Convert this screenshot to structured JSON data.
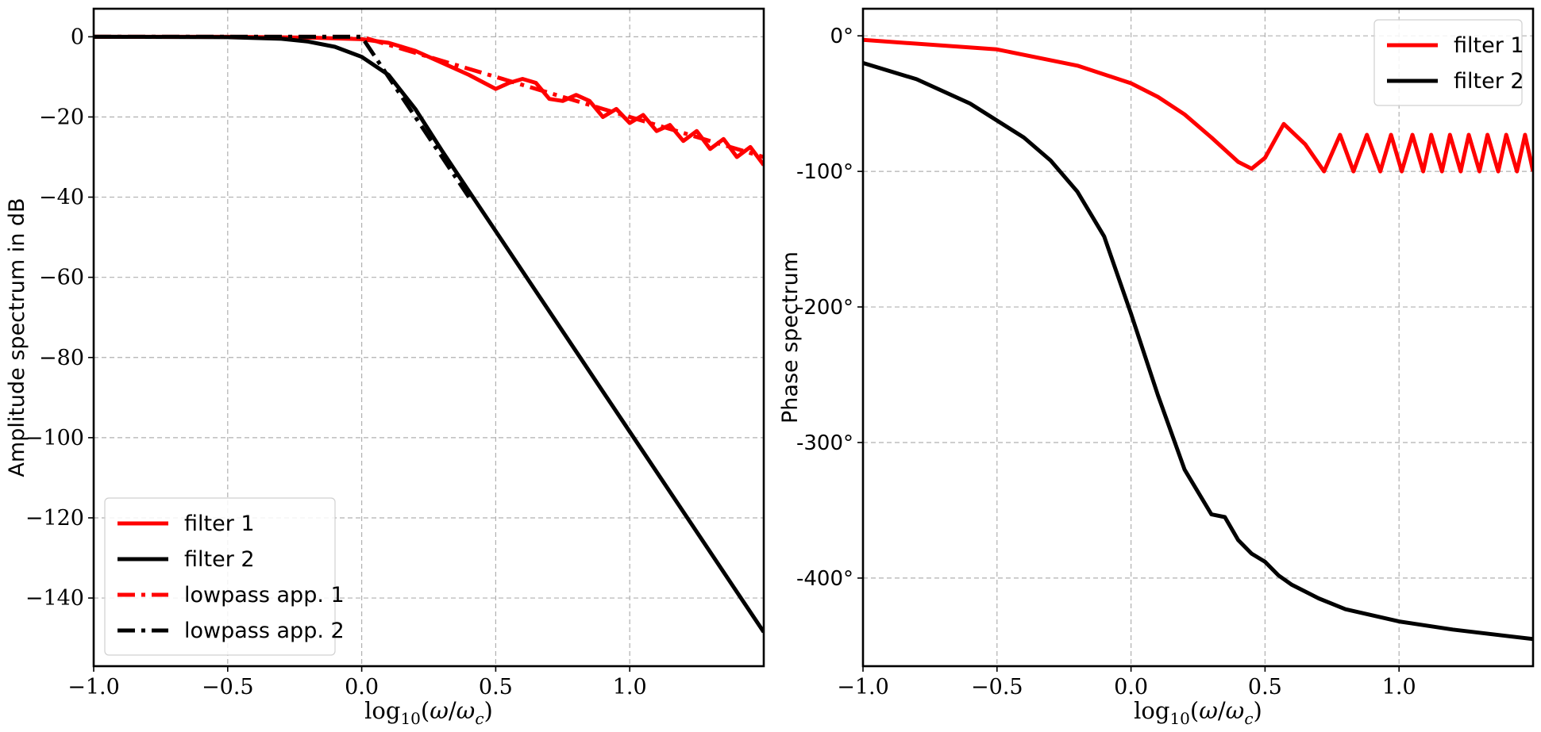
{
  "chart_data": [
    {
      "type": "line",
      "ylabel": "Amplitude spectrum in dB",
      "xlabel": "log10(ω/ωc)",
      "xlim": [
        -1.0,
        1.5
      ],
      "ylim": [
        -157,
        7
      ],
      "xticks": [
        -1.0,
        -0.5,
        0.0,
        0.5,
        1.0
      ],
      "xtick_labels": [
        "−1.0",
        "−0.5",
        "0.0",
        "0.5",
        "1.0"
      ],
      "yticks": [
        0,
        -20,
        -40,
        -60,
        -80,
        -100,
        -120,
        -140
      ],
      "ytick_labels": [
        "0",
        "−20",
        "−40",
        "−60",
        "−80",
        "−100",
        "−120",
        "−140"
      ],
      "grid": true,
      "legend_position": "lower-left",
      "series": [
        {
          "name": "filter 1",
          "color": "#ff0000",
          "style": "solid",
          "x": [
            -1.0,
            -0.5,
            -0.2,
            0.0,
            0.1,
            0.2,
            0.3,
            0.4,
            0.5,
            0.55,
            0.6,
            0.65,
            0.7,
            0.75,
            0.8,
            0.85,
            0.9,
            0.95,
            1.0,
            1.05,
            1.1,
            1.15,
            1.2,
            1.25,
            1.3,
            1.35,
            1.4,
            1.45,
            1.5
          ],
          "y": [
            0,
            0,
            -0.2,
            -0.6,
            -1.5,
            -3.5,
            -6.5,
            -9.5,
            -13,
            -11.5,
            -10.5,
            -11.5,
            -15.5,
            -16,
            -14.5,
            -16,
            -20,
            -18,
            -21.5,
            -19.5,
            -23.5,
            -22,
            -26,
            -23.5,
            -28,
            -25.5,
            -30,
            -27.5,
            -32
          ]
        },
        {
          "name": "filter 2",
          "color": "#000000",
          "style": "solid",
          "x": [
            -1.0,
            -0.5,
            -0.3,
            -0.2,
            -0.1,
            0.0,
            0.1,
            0.2,
            0.3,
            0.4,
            0.5,
            0.6,
            0.8,
            1.0,
            1.2,
            1.4,
            1.5
          ],
          "y": [
            0,
            -0.1,
            -0.5,
            -1.2,
            -2.5,
            -5,
            -9.5,
            -18,
            -28.5,
            -38.5,
            -48.5,
            -58.5,
            -78.5,
            -98.5,
            -118.5,
            -138.5,
            -148.5
          ]
        },
        {
          "name": "lowpass app. 1",
          "color": "#ff0000",
          "style": "dashdot",
          "x": [
            -1.0,
            0.0,
            1.5
          ],
          "y": [
            0,
            0,
            -30
          ]
        },
        {
          "name": "lowpass app. 2",
          "color": "#000000",
          "style": "dashdot",
          "x": [
            -1.0,
            0.0,
            0.4
          ],
          "y": [
            0,
            0,
            -40
          ]
        }
      ]
    },
    {
      "type": "line",
      "ylabel": "Phase spectrum",
      "xlabel": "log10(ω/ωc)",
      "xlim": [
        -1.0,
        1.5
      ],
      "ylim": [
        -465,
        20
      ],
      "xticks": [
        -1.0,
        -0.5,
        0.0,
        0.5,
        1.0
      ],
      "xtick_labels": [
        "−1.0",
        "−0.5",
        "0.0",
        "0.5",
        "1.0"
      ],
      "yticks": [
        0,
        -100,
        -200,
        -300,
        -400
      ],
      "ytick_labels": [
        "0°",
        "-100°",
        "-200°",
        "-300°",
        "-400°"
      ],
      "grid": true,
      "legend_position": "top-right",
      "series": [
        {
          "name": "filter 1",
          "color": "#ff0000",
          "style": "solid",
          "x": [
            -1.0,
            -0.5,
            -0.2,
            0.0,
            0.1,
            0.2,
            0.3,
            0.4,
            0.45,
            0.5,
            0.57,
            0.65,
            0.72,
            0.78,
            0.83,
            0.88,
            0.93,
            0.97,
            1.01,
            1.05,
            1.09,
            1.12,
            1.16,
            1.19,
            1.23,
            1.26,
            1.3,
            1.33,
            1.37,
            1.4,
            1.44,
            1.47,
            1.5
          ],
          "y": [
            -3,
            -10,
            -22,
            -35,
            -45,
            -58,
            -75,
            -93,
            -98,
            -90,
            -65,
            -80,
            -100,
            -73,
            -100,
            -73,
            -100,
            -73,
            -100,
            -73,
            -100,
            -73,
            -100,
            -73,
            -100,
            -73,
            -100,
            -73,
            -100,
            -73,
            -100,
            -73,
            -100
          ]
        },
        {
          "name": "filter 2",
          "color": "#000000",
          "style": "solid",
          "x": [
            -1.0,
            -0.8,
            -0.6,
            -0.4,
            -0.3,
            -0.2,
            -0.1,
            0.0,
            0.1,
            0.2,
            0.3,
            0.35,
            0.4,
            0.45,
            0.5,
            0.55,
            0.6,
            0.7,
            0.8,
            1.0,
            1.2,
            1.5
          ],
          "y": [
            -20,
            -32,
            -50,
            -75,
            -92,
            -115,
            -148,
            -205,
            -265,
            -320,
            -353,
            -355,
            -372,
            -382,
            -388,
            -398,
            -405,
            -415,
            -423,
            -432,
            -438,
            -445
          ]
        }
      ]
    }
  ]
}
